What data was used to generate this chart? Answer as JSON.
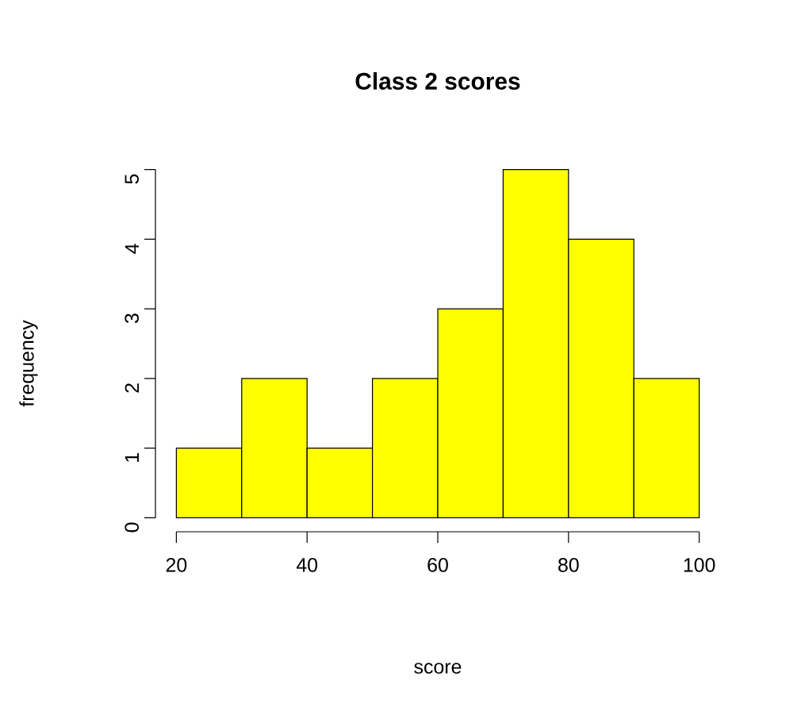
{
  "chart_data": {
    "type": "histogram",
    "title": "Class 2 scores",
    "xlabel": "score",
    "ylabel": "frequency",
    "bins": [
      20,
      30,
      40,
      50,
      60,
      70,
      80,
      90,
      100
    ],
    "values": [
      1,
      2,
      1,
      2,
      3,
      5,
      4,
      2
    ],
    "color": "#ffff00",
    "xlim": [
      20,
      100
    ],
    "ylim": [
      0,
      5
    ],
    "xticks": [
      20,
      40,
      60,
      80,
      100
    ],
    "yticks": [
      0,
      1,
      2,
      3,
      4,
      5
    ]
  }
}
